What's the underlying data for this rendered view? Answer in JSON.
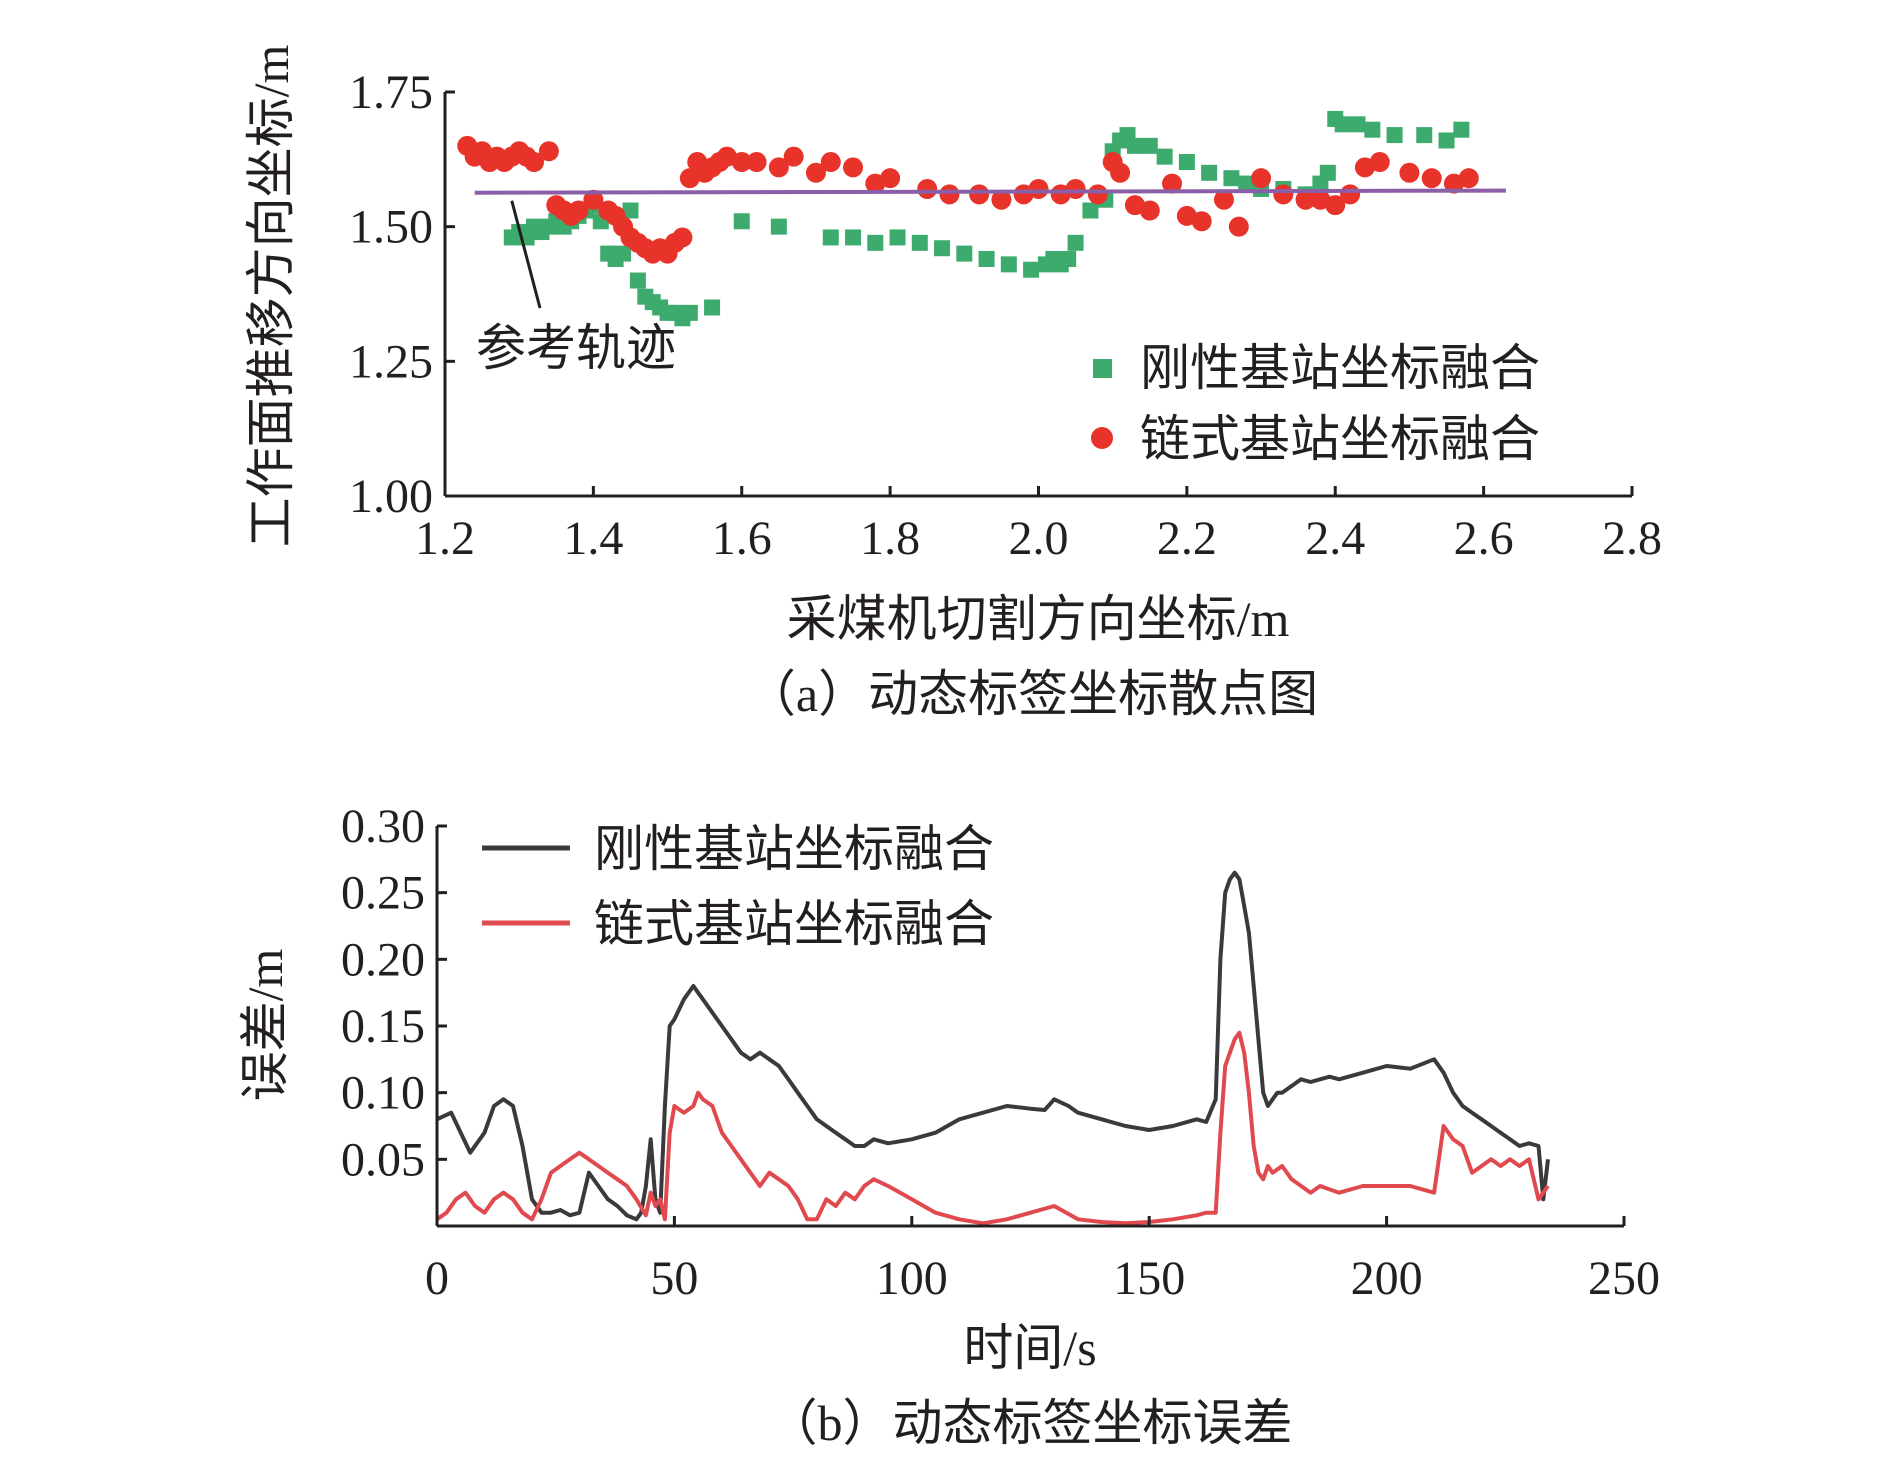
{
  "colors": {
    "rigid": "#3daa6e",
    "chain": "#e8332b",
    "reference": "#8b5ea8",
    "error_rigid": "#3a3a3a",
    "error_chain": "#e04a4f",
    "axis": "#231f20"
  },
  "chart_data": [
    {
      "type": "scatter",
      "caption": "（a）动态标签坐标散点图",
      "xlabel": "采煤机切割方向坐标/m",
      "ylabel": "工作面推移方向坐标/m",
      "xlim": [
        1.2,
        2.8
      ],
      "ylim": [
        1.0,
        1.75
      ],
      "xticks": [
        "1.2",
        "1.4",
        "1.6",
        "1.8",
        "2.0",
        "2.2",
        "2.4",
        "2.6",
        "2.8"
      ],
      "yticks": [
        "1.00",
        "1.25",
        "1.50",
        "1.75"
      ],
      "annotation": {
        "text": "参考轨迹",
        "target": [
          1.29,
          1.563
        ]
      },
      "reference": {
        "name": "参考轨迹",
        "x": [
          1.24,
          2.63
        ],
        "y": [
          1.563,
          1.567
        ]
      },
      "series": [
        {
          "name": "刚性基站坐标融合",
          "marker": "square",
          "x": [
            1.29,
            1.3,
            1.31,
            1.32,
            1.33,
            1.34,
            1.35,
            1.36,
            1.37,
            1.38,
            1.39,
            1.4,
            1.41,
            1.42,
            1.43,
            1.44,
            1.45,
            1.46,
            1.47,
            1.48,
            1.49,
            1.5,
            1.51,
            1.52,
            1.53,
            1.56,
            1.6,
            1.65,
            1.72,
            1.75,
            1.78,
            1.81,
            1.84,
            1.87,
            1.9,
            1.93,
            1.96,
            1.99,
            2.01,
            2.02,
            2.03,
            2.04,
            2.05,
            2.07,
            2.09,
            2.1,
            2.11,
            2.12,
            2.13,
            2.15,
            2.17,
            2.2,
            2.23,
            2.26,
            2.28,
            2.3,
            2.33,
            2.36,
            2.38,
            2.39,
            2.4,
            2.41,
            2.43,
            2.45,
            2.48,
            2.52,
            2.55,
            2.57
          ],
          "y": [
            1.48,
            1.49,
            1.48,
            1.5,
            1.49,
            1.5,
            1.51,
            1.5,
            1.51,
            1.52,
            1.53,
            1.54,
            1.51,
            1.45,
            1.44,
            1.45,
            1.53,
            1.4,
            1.37,
            1.36,
            1.35,
            1.34,
            1.34,
            1.33,
            1.34,
            1.35,
            1.51,
            1.5,
            1.48,
            1.48,
            1.47,
            1.48,
            1.47,
            1.46,
            1.45,
            1.44,
            1.43,
            1.42,
            1.43,
            1.44,
            1.43,
            1.44,
            1.47,
            1.53,
            1.55,
            1.64,
            1.66,
            1.67,
            1.65,
            1.65,
            1.63,
            1.62,
            1.6,
            1.59,
            1.58,
            1.57,
            1.57,
            1.56,
            1.58,
            1.6,
            1.7,
            1.69,
            1.69,
            1.68,
            1.67,
            1.67,
            1.66,
            1.68
          ]
        },
        {
          "name": "链式基站坐标融合",
          "marker": "circle",
          "x": [
            1.23,
            1.24,
            1.25,
            1.26,
            1.27,
            1.28,
            1.29,
            1.3,
            1.31,
            1.32,
            1.34,
            1.35,
            1.36,
            1.37,
            1.38,
            1.4,
            1.42,
            1.43,
            1.44,
            1.45,
            1.46,
            1.47,
            1.48,
            1.49,
            1.5,
            1.51,
            1.52,
            1.53,
            1.54,
            1.55,
            1.56,
            1.57,
            1.58,
            1.6,
            1.62,
            1.65,
            1.67,
            1.7,
            1.72,
            1.75,
            1.78,
            1.8,
            1.85,
            1.88,
            1.92,
            1.95,
            1.98,
            2.0,
            2.03,
            2.05,
            2.08,
            2.1,
            2.11,
            2.13,
            2.15,
            2.18,
            2.2,
            2.22,
            2.25,
            2.27,
            2.3,
            2.33,
            2.36,
            2.38,
            2.4,
            2.42,
            2.44,
            2.46,
            2.5,
            2.53,
            2.56,
            2.58
          ],
          "y": [
            1.65,
            1.63,
            1.64,
            1.62,
            1.63,
            1.62,
            1.63,
            1.64,
            1.63,
            1.62,
            1.64,
            1.54,
            1.53,
            1.52,
            1.53,
            1.55,
            1.53,
            1.52,
            1.5,
            1.48,
            1.47,
            1.46,
            1.45,
            1.46,
            1.45,
            1.47,
            1.48,
            1.59,
            1.62,
            1.6,
            1.61,
            1.62,
            1.63,
            1.62,
            1.62,
            1.61,
            1.63,
            1.6,
            1.62,
            1.61,
            1.58,
            1.59,
            1.57,
            1.56,
            1.56,
            1.55,
            1.56,
            1.57,
            1.56,
            1.57,
            1.56,
            1.62,
            1.6,
            1.54,
            1.53,
            1.58,
            1.52,
            1.51,
            1.55,
            1.5,
            1.59,
            1.56,
            1.55,
            1.55,
            1.54,
            1.56,
            1.61,
            1.62,
            1.6,
            1.59,
            1.58,
            1.59
          ]
        }
      ]
    },
    {
      "type": "line",
      "caption": "（b）动态标签坐标误差",
      "xlabel": "时间/s",
      "ylabel": "误差/m",
      "xlim": [
        0,
        250
      ],
      "ylim": [
        0,
        0.3
      ],
      "xticks": [
        "0",
        "50",
        "100",
        "150",
        "200",
        "250"
      ],
      "yticks": [
        "0.05",
        "0.10",
        "0.15",
        "0.20",
        "0.25",
        "0.30"
      ],
      "series": [
        {
          "name": "刚性基站坐标融合",
          "x": [
            0,
            3,
            5,
            7,
            10,
            12,
            14,
            16,
            18,
            20,
            22,
            24,
            26,
            28,
            30,
            32,
            34,
            36,
            38,
            40,
            42,
            43,
            44,
            45,
            46,
            47,
            48,
            49,
            50,
            52,
            54,
            55,
            56,
            58,
            60,
            62,
            64,
            66,
            68,
            70,
            72,
            74,
            76,
            78,
            80,
            82,
            84,
            86,
            88,
            90,
            92,
            95,
            100,
            105,
            110,
            115,
            120,
            125,
            128,
            130,
            133,
            135,
            140,
            145,
            150,
            155,
            160,
            162,
            164,
            165,
            166,
            167,
            168,
            169,
            170,
            171,
            172,
            173,
            174,
            175,
            176,
            177,
            178,
            180,
            182,
            184,
            186,
            188,
            190,
            195,
            200,
            205,
            210,
            212,
            214,
            216,
            218,
            220,
            222,
            224,
            226,
            228,
            230,
            232,
            233,
            234
          ],
          "y": [
            0.08,
            0.085,
            0.07,
            0.055,
            0.07,
            0.09,
            0.095,
            0.09,
            0.06,
            0.02,
            0.01,
            0.01,
            0.012,
            0.008,
            0.01,
            0.04,
            0.03,
            0.02,
            0.015,
            0.008,
            0.005,
            0.01,
            0.03,
            0.065,
            0.02,
            0.01,
            0.09,
            0.15,
            0.155,
            0.17,
            0.18,
            0.175,
            0.17,
            0.16,
            0.15,
            0.14,
            0.13,
            0.125,
            0.13,
            0.125,
            0.12,
            0.11,
            0.1,
            0.09,
            0.08,
            0.075,
            0.07,
            0.065,
            0.06,
            0.06,
            0.065,
            0.062,
            0.065,
            0.07,
            0.08,
            0.085,
            0.09,
            0.088,
            0.087,
            0.095,
            0.09,
            0.085,
            0.08,
            0.075,
            0.072,
            0.075,
            0.08,
            0.078,
            0.095,
            0.2,
            0.25,
            0.26,
            0.265,
            0.26,
            0.24,
            0.22,
            0.18,
            0.14,
            0.1,
            0.09,
            0.095,
            0.1,
            0.1,
            0.105,
            0.11,
            0.108,
            0.11,
            0.112,
            0.11,
            0.115,
            0.12,
            0.118,
            0.125,
            0.115,
            0.1,
            0.09,
            0.085,
            0.08,
            0.075,
            0.07,
            0.065,
            0.06,
            0.062,
            0.06,
            0.02,
            0.05
          ]
        },
        {
          "name": "链式基站坐标融合",
          "x": [
            0,
            2,
            4,
            6,
            8,
            10,
            12,
            14,
            16,
            18,
            20,
            22,
            24,
            26,
            28,
            30,
            32,
            34,
            36,
            38,
            40,
            42,
            44,
            45,
            46,
            47,
            48,
            49,
            50,
            52,
            54,
            55,
            56,
            58,
            60,
            62,
            64,
            66,
            68,
            70,
            72,
            74,
            76,
            78,
            80,
            82,
            84,
            86,
            88,
            90,
            92,
            95,
            100,
            105,
            110,
            115,
            120,
            125,
            130,
            135,
            140,
            145,
            150,
            155,
            160,
            162,
            164,
            165,
            166,
            167,
            168,
            169,
            170,
            171,
            172,
            173,
            174,
            175,
            176,
            178,
            180,
            182,
            184,
            186,
            190,
            195,
            200,
            205,
            210,
            212,
            214,
            216,
            218,
            220,
            222,
            224,
            226,
            228,
            230,
            232,
            234
          ],
          "y": [
            0.005,
            0.01,
            0.02,
            0.025,
            0.015,
            0.01,
            0.02,
            0.025,
            0.02,
            0.01,
            0.005,
            0.02,
            0.04,
            0.045,
            0.05,
            0.055,
            0.05,
            0.045,
            0.04,
            0.035,
            0.03,
            0.02,
            0.008,
            0.025,
            0.015,
            0.02,
            0.005,
            0.07,
            0.09,
            0.085,
            0.09,
            0.1,
            0.095,
            0.09,
            0.07,
            0.06,
            0.05,
            0.04,
            0.03,
            0.04,
            0.035,
            0.03,
            0.02,
            0.005,
            0.005,
            0.02,
            0.015,
            0.025,
            0.02,
            0.03,
            0.035,
            0.03,
            0.02,
            0.01,
            0.005,
            0.002,
            0.005,
            0.01,
            0.015,
            0.005,
            0.003,
            0.002,
            0.003,
            0.005,
            0.008,
            0.01,
            0.01,
            0.07,
            0.12,
            0.13,
            0.14,
            0.145,
            0.13,
            0.1,
            0.06,
            0.04,
            0.035,
            0.045,
            0.04,
            0.045,
            0.035,
            0.03,
            0.025,
            0.03,
            0.025,
            0.03,
            0.03,
            0.03,
            0.025,
            0.075,
            0.065,
            0.06,
            0.04,
            0.045,
            0.05,
            0.045,
            0.05,
            0.045,
            0.05,
            0.02,
            0.03
          ]
        }
      ]
    }
  ]
}
